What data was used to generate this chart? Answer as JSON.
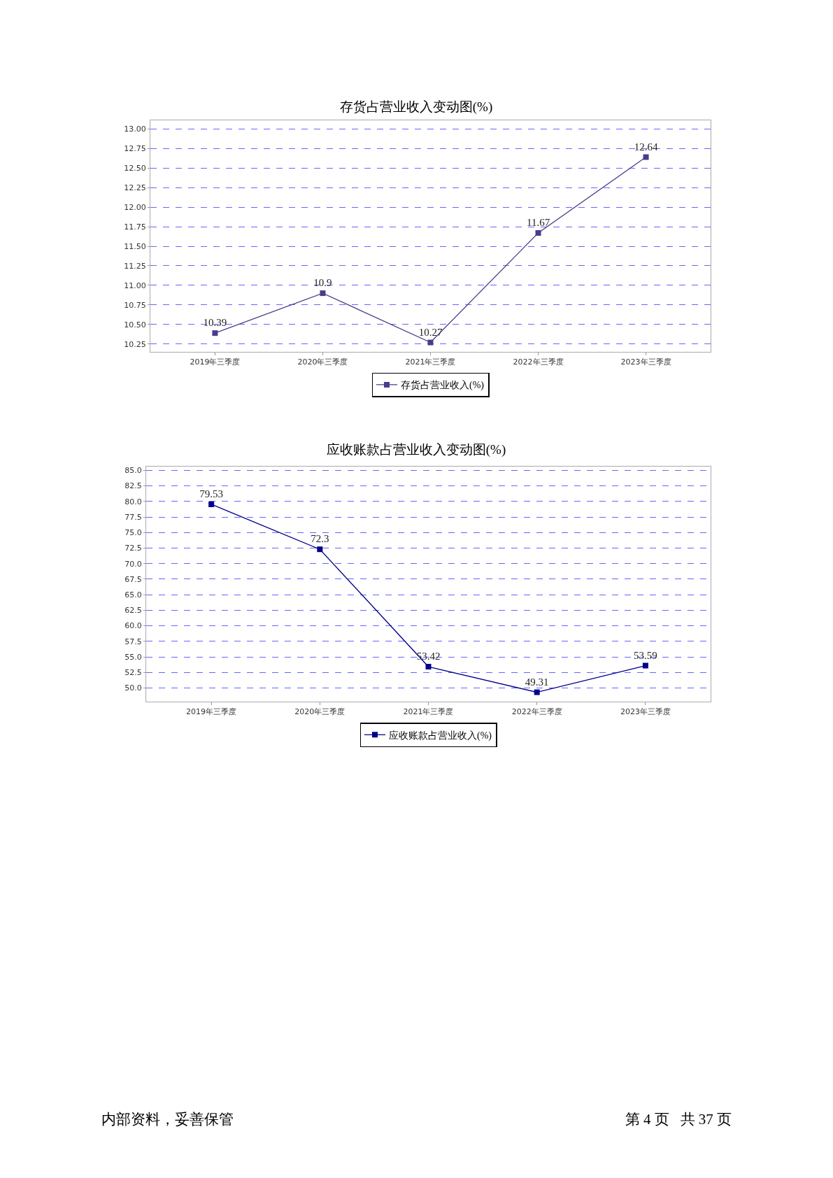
{
  "chart_data": [
    {
      "type": "line",
      "title": "存货占营业收入变动图(%)",
      "categories": [
        "2019年三季度",
        "2020年三季度",
        "2021年三季度",
        "2022年三季度",
        "2023年三季度"
      ],
      "series": [
        {
          "name": "存货占营业收入(%)",
          "color": "#483d8b",
          "values": [
            10.39,
            10.9,
            10.27,
            11.67,
            12.64
          ]
        }
      ],
      "ylim": [
        10.15,
        13.11
      ],
      "yticks": [
        {
          "value": 10.25,
          "label": "10.25"
        },
        {
          "value": 10.5,
          "label": "10.50"
        },
        {
          "value": 10.75,
          "label": "10.75"
        },
        {
          "value": 11,
          "label": "11.00"
        },
        {
          "value": 11.25,
          "label": "11.25"
        },
        {
          "value": 11.5,
          "label": "11.50"
        },
        {
          "value": 11.75,
          "label": "11.75"
        },
        {
          "value": 12,
          "label": "12.00"
        },
        {
          "value": 12.25,
          "label": "12.25"
        },
        {
          "value": 12.5,
          "label": "12.50"
        },
        {
          "value": 12.75,
          "label": "12.75"
        },
        {
          "value": 13,
          "label": "13.00"
        }
      ],
      "grid": "y",
      "legend": "bottom",
      "marker": "square",
      "line_style": "solid",
      "data_labels": true
    },
    {
      "type": "line",
      "title": "应收账款占营业收入变动图(%)",
      "categories": [
        "2019年三季度",
        "2020年三季度",
        "2021年三季度",
        "2022年三季度",
        "2023年三季度"
      ],
      "series": [
        {
          "name": "应收账款占营业收入(%)",
          "color": "#00008b",
          "values": [
            79.53,
            72.3,
            53.42,
            49.31,
            53.59
          ]
        }
      ],
      "ylim": [
        47.8,
        85.6
      ],
      "yticks": [
        {
          "value": 50,
          "label": "50.0"
        },
        {
          "value": 52.5,
          "label": "52.5"
        },
        {
          "value": 55,
          "label": "55.0"
        },
        {
          "value": 57.5,
          "label": "57.5"
        },
        {
          "value": 60,
          "label": "60.0"
        },
        {
          "value": 62.5,
          "label": "62.5"
        },
        {
          "value": 65,
          "label": "65.0"
        },
        {
          "value": 67.5,
          "label": "67.5"
        },
        {
          "value": 70,
          "label": "70.0"
        },
        {
          "value": 72.5,
          "label": "72.5"
        },
        {
          "value": 75,
          "label": "75.0"
        },
        {
          "value": 77.5,
          "label": "77.5"
        },
        {
          "value": 80,
          "label": "80.0"
        },
        {
          "value": 82.5,
          "label": "82.5"
        },
        {
          "value": 85,
          "label": "85.0"
        }
      ],
      "grid": "y",
      "legend": "bottom",
      "marker": "square",
      "line_style": "solid",
      "data_labels": true,
      "annotations": [
        "内部资料，妥善保管",
        "第 4 页   共 37 页"
      ]
    }
  ]
}
